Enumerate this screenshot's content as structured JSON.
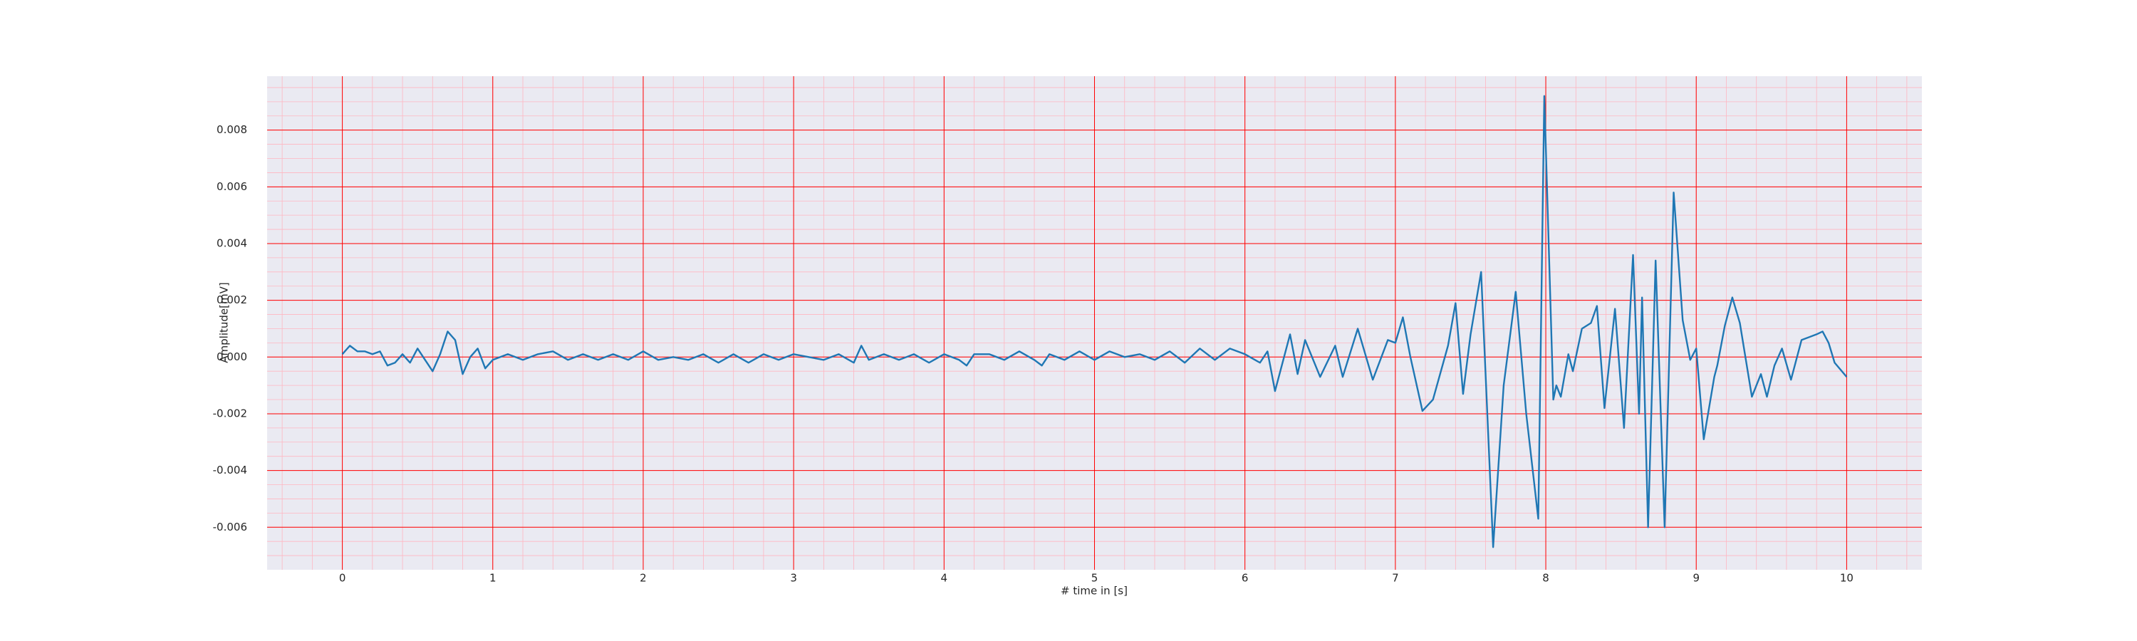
{
  "chart_data": {
    "type": "line",
    "xlabel": "# time in [s]",
    "ylabel": "Amplitude[mV]",
    "xlim": [
      -0.5,
      10.5
    ],
    "ylim": [
      -0.0075,
      0.0099
    ],
    "xticks": [
      0,
      1,
      2,
      3,
      4,
      5,
      6,
      7,
      8,
      9,
      10
    ],
    "yticks": [
      -0.006,
      -0.004,
      -0.002,
      {
        "value": 0,
        "label": "0.000"
      },
      0.002,
      0.004,
      0.006,
      0.008
    ],
    "grid": true,
    "grid_color": "#ff0000",
    "minor_grid": true,
    "minor_grid_color": "#ffb6c1",
    "background": "#eaeaf2",
    "series": [
      {
        "color": "#1f77b4",
        "x": [
          0,
          0.05,
          0.1,
          0.15,
          0.2,
          0.25,
          0.3,
          0.35,
          0.4,
          0.45,
          0.5,
          0.55,
          0.6,
          0.65,
          0.7,
          0.75,
          0.8,
          0.85,
          0.9,
          0.95,
          1.0,
          1.1,
          1.2,
          1.3,
          1.4,
          1.5,
          1.6,
          1.7,
          1.8,
          1.9,
          2.0,
          2.1,
          2.2,
          2.3,
          2.4,
          2.5,
          2.6,
          2.7,
          2.8,
          2.9,
          3.0,
          3.1,
          3.2,
          3.3,
          3.4,
          3.45,
          3.5,
          3.6,
          3.7,
          3.8,
          3.9,
          4.0,
          4.1,
          4.15,
          4.2,
          4.3,
          4.4,
          4.5,
          4.6,
          4.65,
          4.7,
          4.8,
          4.9,
          5.0,
          5.1,
          5.2,
          5.3,
          5.4,
          5.5,
          5.6,
          5.7,
          5.8,
          5.9,
          6.0,
          6.1,
          6.15,
          6.2,
          6.3,
          6.35,
          6.4,
          6.5,
          6.6,
          6.65,
          6.75,
          6.85,
          6.95,
          7.0,
          7.05,
          7.1,
          7.18,
          7.25,
          7.35,
          7.4,
          7.45,
          7.5,
          7.57,
          7.65,
          7.72,
          7.8,
          7.87,
          7.95,
          7.99,
          8.05,
          8.07,
          8.1,
          8.15,
          8.18,
          8.24,
          8.3,
          8.34,
          8.39,
          8.46,
          8.52,
          8.58,
          8.62,
          8.64,
          8.68,
          8.73,
          8.79,
          8.85,
          8.91,
          8.96,
          9.0,
          9.05,
          9.12,
          9.14,
          9.19,
          9.24,
          9.29,
          9.37,
          9.43,
          9.47,
          9.52,
          9.57,
          9.63,
          9.7,
          9.8,
          9.84,
          9.88,
          9.92,
          10.0
        ],
        "values": [
          0.0001,
          0.0004,
          0.0002,
          0.0002,
          0.0001,
          0.0002,
          -0.0003,
          -0.0002,
          0.0001,
          -0.0002,
          0.0003,
          -0.0001,
          -0.0005,
          0.0001,
          0.0009,
          0.0006,
          -0.0006,
          0,
          0.0003,
          -0.0004,
          -0.0001,
          0.0001,
          -0.0001,
          0.0001,
          0.0002,
          -0.0001,
          0.0001,
          -0.0001,
          0.0001,
          -0.0001,
          0.0002,
          -0.0001,
          0,
          -0.0001,
          0.0001,
          -0.0002,
          0.0001,
          -0.0002,
          0.0001,
          -0.0001,
          0.0001,
          0,
          -0.0001,
          0.0001,
          -0.0002,
          0.0004,
          -0.0001,
          0.0001,
          -0.0001,
          0.0001,
          -0.0002,
          0.0001,
          -0.0001,
          -0.0003,
          0.0001,
          0.0001,
          -0.0001,
          0.0002,
          -0.0001,
          -0.0003,
          0.0001,
          -0.0001,
          0.0002,
          -0.0001,
          0.0002,
          0,
          0.0001,
          -0.0001,
          0.0002,
          -0.0002,
          0.0003,
          -0.0001,
          0.0003,
          0.0001,
          -0.0002,
          0.0002,
          -0.0012,
          0.0008,
          -0.0006,
          0.0006,
          -0.0007,
          0.0004,
          -0.0007,
          0.001,
          -0.0008,
          0.0006,
          0.0005,
          0.0014,
          0,
          -0.0019,
          -0.0015,
          0.0004,
          0.0019,
          -0.0013,
          0.0008,
          0.003,
          -0.0067,
          -0.001,
          0.0023,
          -0.002,
          -0.0057,
          0.0092,
          -0.0015,
          -0.001,
          -0.0014,
          0.0001,
          -0.0005,
          0.001,
          0.0012,
          0.0018,
          -0.0018,
          0.0017,
          -0.0025,
          0.0036,
          -0.002,
          0.0021,
          -0.006,
          0.0034,
          -0.006,
          0.0058,
          0.0013,
          -0.0001,
          0.0003,
          -0.0029,
          -0.0007,
          -0.0003,
          0.0011,
          0.0021,
          0.0012,
          -0.0014,
          -0.0006,
          -0.0014,
          -0.0003,
          0.0003,
          -0.0008,
          0.0006,
          0.0008,
          0.0009,
          0.0005,
          -0.0002,
          -0.0007
        ]
      }
    ]
  }
}
